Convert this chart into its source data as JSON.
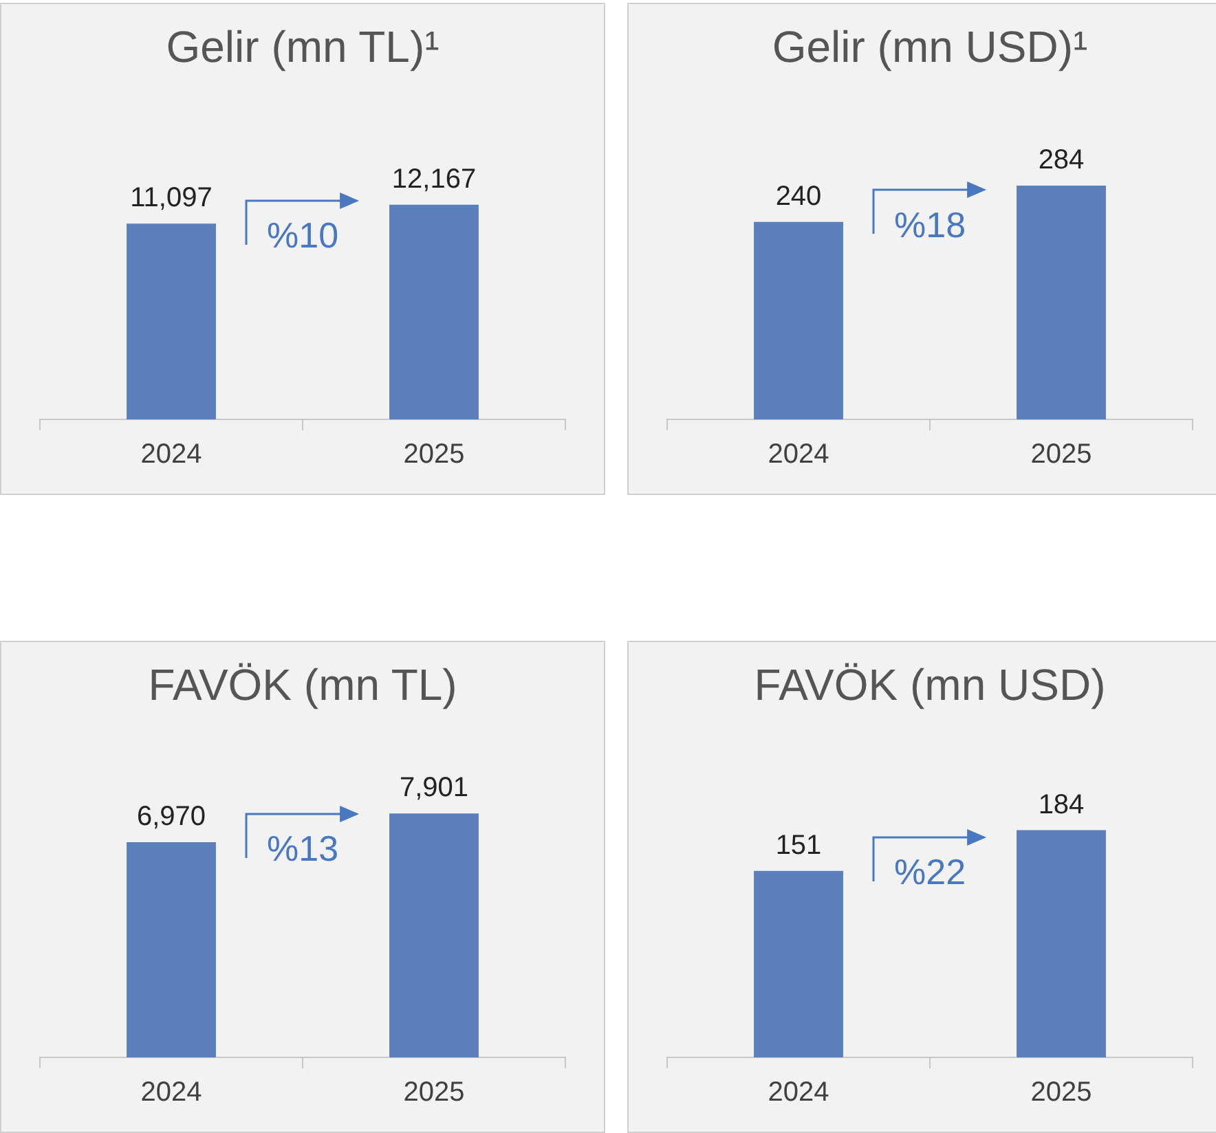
{
  "chart_data": [
    {
      "type": "bar",
      "title": "Gelir (mn TL)¹",
      "categories": [
        "2024",
        "2025"
      ],
      "values": [
        11097,
        12167
      ],
      "value_labels": [
        "11,097",
        "12,167"
      ],
      "color": "#5a7fbb",
      "annotations": [
        "%10"
      ]
    },
    {
      "type": "bar",
      "title": "Gelir (mn USD)¹",
      "categories": [
        "2024",
        "2025"
      ],
      "values": [
        240,
        284
      ],
      "value_labels": [
        "240",
        "284"
      ],
      "color": "#5a7fbb",
      "annotations": [
        "%18"
      ]
    },
    {
      "type": "bar",
      "title": "FAVÖK (mn TL)",
      "categories": [
        "2024",
        "2025"
      ],
      "values": [
        6970,
        7901
      ],
      "value_labels": [
        "6,970",
        "7,901"
      ],
      "color": "#5a7fbb",
      "annotations": [
        "%13"
      ]
    },
    {
      "type": "bar",
      "title": "FAVÖK (mn USD)",
      "categories": [
        "2024",
        "2025"
      ],
      "values": [
        151,
        184
      ],
      "value_labels": [
        "151",
        "184"
      ],
      "color": "#5a7fbb",
      "annotations": [
        "%22"
      ]
    }
  ]
}
